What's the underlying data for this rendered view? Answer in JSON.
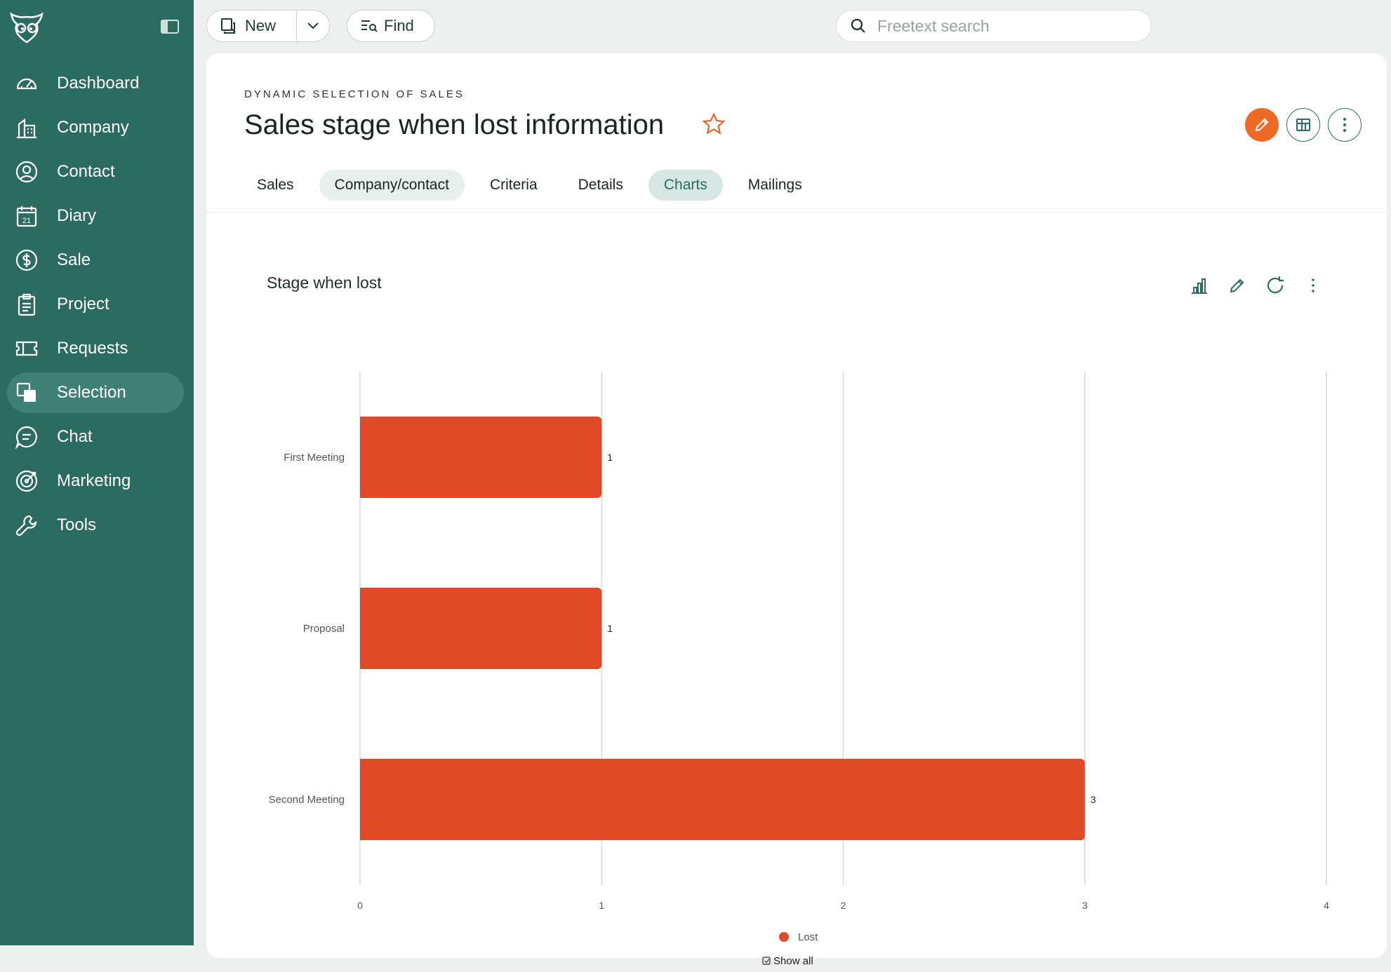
{
  "sidebar": {
    "items": [
      {
        "label": "Dashboard",
        "icon": "speedometer-icon"
      },
      {
        "label": "Company",
        "icon": "building-icon"
      },
      {
        "label": "Contact",
        "icon": "person-circle-icon"
      },
      {
        "label": "Diary",
        "icon": "calendar-icon"
      },
      {
        "label": "Sale",
        "icon": "dollar-icon"
      },
      {
        "label": "Project",
        "icon": "clipboard-icon"
      },
      {
        "label": "Requests",
        "icon": "ticket-icon"
      },
      {
        "label": "Selection",
        "icon": "selection-icon"
      },
      {
        "label": "Chat",
        "icon": "chat-icon"
      },
      {
        "label": "Marketing",
        "icon": "target-icon"
      },
      {
        "label": "Tools",
        "icon": "wrench-icon"
      }
    ],
    "active": "Selection",
    "diary_day": "21"
  },
  "toolbar": {
    "new_label": "New",
    "find_label": "Find",
    "search_placeholder": "Freetext search"
  },
  "page": {
    "eyebrow": "DYNAMIC SELECTION OF SALES",
    "title": "Sales stage when lost information",
    "tabs": [
      "Sales",
      "Company/contact",
      "Criteria",
      "Details",
      "Charts",
      "Mailings"
    ],
    "active_tab": "Charts"
  },
  "colors": {
    "sidebar": "#2b6b60",
    "accent": "#ee6a25",
    "bar": "#e14a26"
  },
  "chart_data": {
    "type": "bar",
    "orientation": "horizontal",
    "title": "Stage when lost",
    "categories": [
      "First Meeting",
      "Proposal",
      "Second Meeting"
    ],
    "series": [
      {
        "name": "Lost",
        "values": [
          1,
          1,
          3
        ]
      }
    ],
    "xlim": [
      0,
      4
    ],
    "xticks": [
      "0",
      "1",
      "2",
      "3",
      "4"
    ],
    "grid": true,
    "legend": "bottom",
    "show_all_label": "Show all"
  }
}
